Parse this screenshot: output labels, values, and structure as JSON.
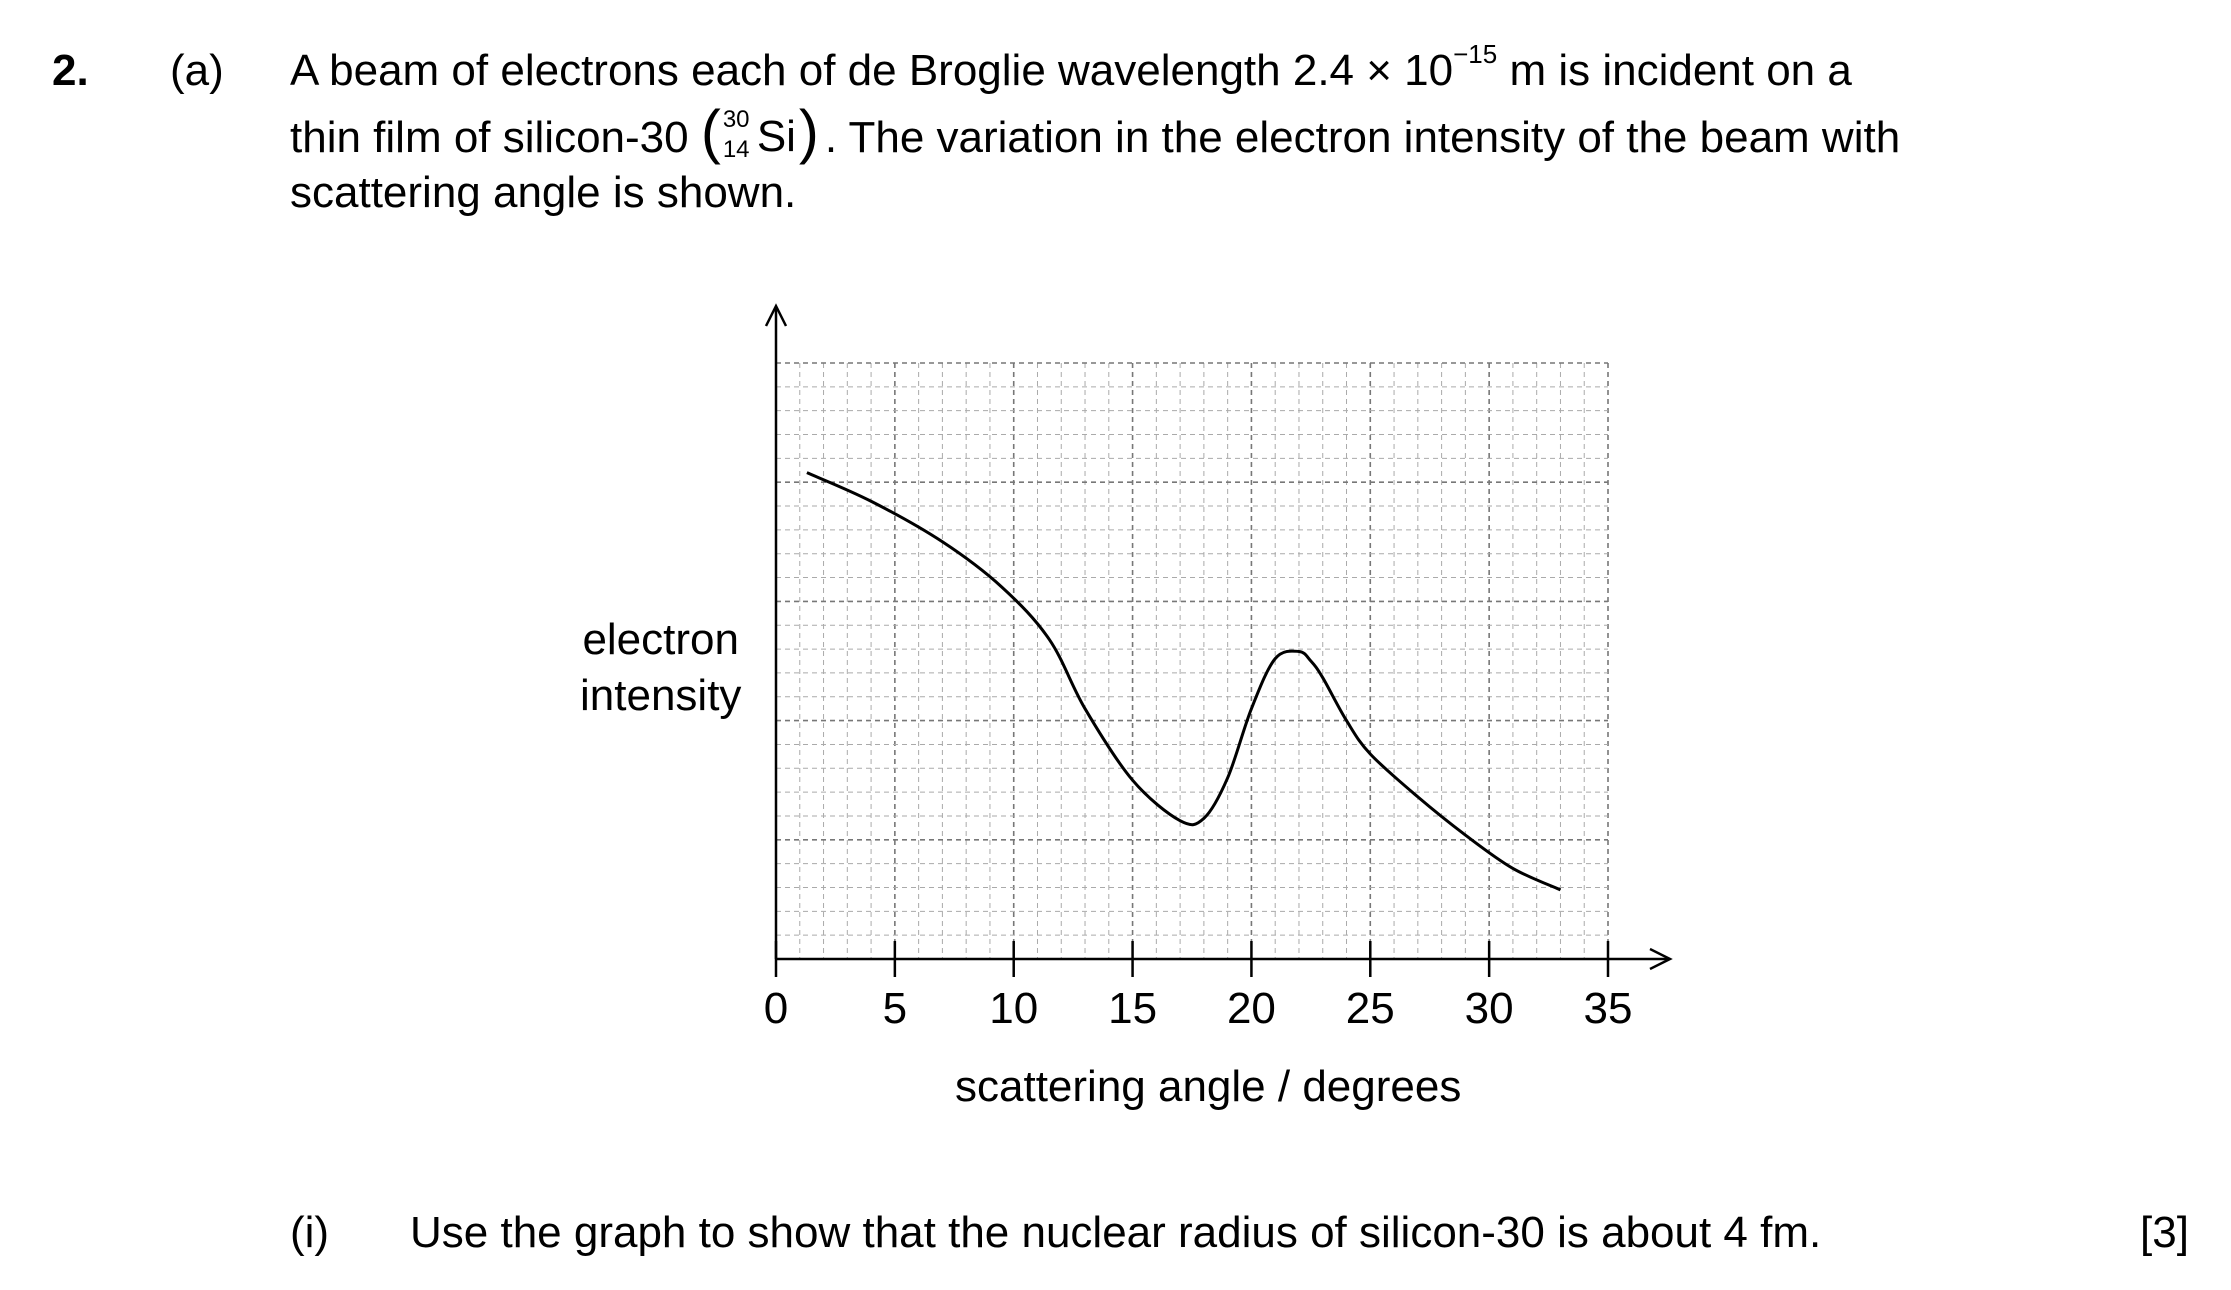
{
  "question": {
    "number": "2.",
    "part": "(a)",
    "line1_a": "A beam of electrons each of de Broglie wavelength 2.4 × 10",
    "line1_exp": "−15",
    "line1_b": " m is incident on a",
    "line2_a": "thin film of silicon-30 ",
    "nuclide_mass": "30",
    "nuclide_atomic": "14",
    "nuclide_symbol": "Si",
    "line2_b": ". The variation in the electron intensity of the beam with",
    "line3": "scattering angle is shown."
  },
  "chart_data": {
    "type": "line",
    "xlabel": "scattering angle / degrees",
    "ylabel_line1": "electron",
    "ylabel_line2": "intensity",
    "x_ticks": [
      "0",
      "5",
      "10",
      "15",
      "20",
      "25",
      "30",
      "35"
    ],
    "xlim": [
      0,
      35
    ],
    "ylim": [
      0,
      25
    ],
    "y_ticks_printed": false,
    "grid": true,
    "series": [
      {
        "x": [
          1.3,
          4,
          7,
          9.5,
          11.5,
          13,
          15,
          17,
          18,
          19,
          20,
          21,
          22,
          22.5,
          23,
          24,
          25,
          27,
          29,
          31,
          33
        ],
        "y": [
          20.4,
          19.2,
          17.5,
          15.6,
          13.4,
          10.5,
          7.5,
          5.8,
          5.9,
          7.6,
          10.5,
          12.6,
          12.9,
          12.5,
          11.8,
          10.0,
          8.6,
          6.8,
          5.2,
          3.8,
          2.9
        ]
      }
    ]
  },
  "subquestion": {
    "label": "(i)",
    "text": "Use the graph to show that the nuclear radius of silicon-30 is about 4 fm.",
    "marks": "[3]"
  }
}
